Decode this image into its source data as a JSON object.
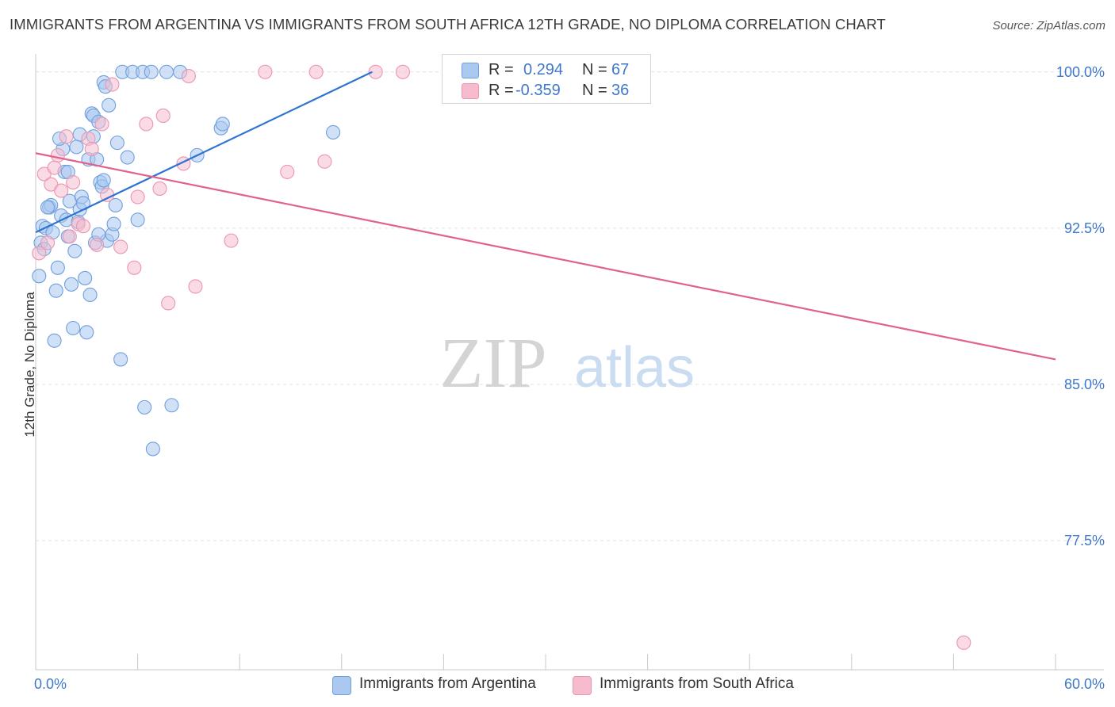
{
  "title": "IMMIGRANTS FROM ARGENTINA VS IMMIGRANTS FROM SOUTH AFRICA 12TH GRADE, NO DIPLOMA CORRELATION CHART",
  "source": "Source: ZipAtlas.com",
  "watermark": {
    "zip": "ZIP",
    "atlas": "atlas"
  },
  "stats": {
    "argentina": {
      "r_label": "R =",
      "r_value": "0.294",
      "n_label": "N =",
      "n_value": "67"
    },
    "south_africa": {
      "r_label": "R =",
      "r_value": "-0.359",
      "n_label": "N =",
      "n_value": "36"
    }
  },
  "legend": {
    "argentina": "Immigrants from Argentina",
    "south_africa": "Immigrants from South Africa"
  },
  "colors": {
    "blue_fill": "#aac8f0",
    "blue_stroke": "#6f9fdc",
    "blue_line": "#2f74d0",
    "pink_fill": "#f6bccd",
    "pink_stroke": "#ea96b1",
    "pink_line": "#e0628d",
    "tick_text": "#3f78c9",
    "grid": "#e2e2e2"
  },
  "chart_data": {
    "type": "scatter",
    "title": "IMMIGRANTS FROM ARGENTINA VS IMMIGRANTS FROM SOUTH AFRICA 12TH GRADE, NO DIPLOMA CORRELATION CHART",
    "xlabel": "",
    "ylabel": "12th Grade, No Diploma",
    "xlim": [
      0,
      60
    ],
    "ylim": [
      71.3,
      100.6
    ],
    "x_tick_labels": [
      "0.0%",
      "60.0%"
    ],
    "y_ticks": [
      100.0,
      92.5,
      85.0,
      77.5
    ],
    "y_tick_labels": [
      "100.0%",
      "92.5%",
      "85.0%",
      "77.5%"
    ],
    "series": [
      {
        "name": "Immigrants from Argentina",
        "color": "blue",
        "points": [
          [
            0.2,
            90.2
          ],
          [
            0.3,
            91.8
          ],
          [
            0.4,
            92.6
          ],
          [
            0.5,
            91.5
          ],
          [
            0.6,
            92.5
          ],
          [
            0.8,
            93.5
          ],
          [
            0.9,
            93.6
          ],
          [
            1.0,
            92.3
          ],
          [
            1.1,
            87.1
          ],
          [
            1.2,
            89.5
          ],
          [
            1.3,
            90.6
          ],
          [
            1.5,
            93.1
          ],
          [
            1.6,
            96.3
          ],
          [
            1.7,
            95.2
          ],
          [
            1.8,
            92.9
          ],
          [
            1.9,
            95.2
          ],
          [
            2.0,
            93.8
          ],
          [
            2.1,
            89.8
          ],
          [
            2.2,
            87.7
          ],
          [
            2.3,
            91.4
          ],
          [
            2.4,
            96.4
          ],
          [
            2.5,
            92.8
          ],
          [
            2.6,
            93.4
          ],
          [
            2.7,
            94.0
          ],
          [
            2.8,
            93.7
          ],
          [
            2.9,
            90.1
          ],
          [
            3.0,
            87.5
          ],
          [
            3.1,
            95.8
          ],
          [
            3.2,
            89.3
          ],
          [
            3.3,
            98.0
          ],
          [
            3.4,
            97.9
          ],
          [
            3.5,
            91.8
          ],
          [
            3.6,
            95.8
          ],
          [
            3.7,
            97.6
          ],
          [
            3.8,
            94.7
          ],
          [
            3.9,
            94.5
          ],
          [
            4.0,
            94.8
          ],
          [
            4.0,
            99.5
          ],
          [
            4.1,
            99.3
          ],
          [
            4.2,
            91.9
          ],
          [
            4.3,
            98.4
          ],
          [
            4.5,
            92.2
          ],
          [
            4.6,
            92.7
          ],
          [
            4.7,
            93.6
          ],
          [
            4.8,
            96.6
          ],
          [
            5.0,
            86.2
          ],
          [
            5.1,
            100.0
          ],
          [
            5.4,
            95.9
          ],
          [
            5.7,
            100.0
          ],
          [
            6.0,
            92.9
          ],
          [
            6.3,
            100.0
          ],
          [
            6.4,
            83.9
          ],
          [
            6.8,
            100.0
          ],
          [
            7.7,
            100.0
          ],
          [
            8.0,
            84.0
          ],
          [
            8.5,
            100.0
          ],
          [
            9.5,
            96.0
          ],
          [
            10.9,
            97.3
          ],
          [
            11.0,
            97.5
          ],
          [
            17.5,
            97.1
          ],
          [
            1.4,
            96.8
          ],
          [
            2.6,
            97.0
          ],
          [
            3.4,
            96.9
          ],
          [
            6.9,
            81.9
          ],
          [
            0.7,
            93.5
          ],
          [
            1.9,
            92.1
          ],
          [
            3.7,
            92.2
          ]
        ]
      },
      {
        "name": "Immigrants from South Africa",
        "color": "pink",
        "points": [
          [
            0.2,
            91.3
          ],
          [
            0.5,
            95.1
          ],
          [
            0.7,
            91.8
          ],
          [
            0.9,
            94.6
          ],
          [
            1.1,
            95.4
          ],
          [
            1.3,
            96.0
          ],
          [
            1.5,
            94.3
          ],
          [
            1.8,
            96.9
          ],
          [
            2.0,
            92.1
          ],
          [
            2.2,
            94.7
          ],
          [
            2.5,
            92.7
          ],
          [
            2.8,
            92.6
          ],
          [
            3.1,
            96.8
          ],
          [
            3.3,
            96.3
          ],
          [
            3.6,
            91.7
          ],
          [
            3.9,
            97.5
          ],
          [
            4.2,
            94.1
          ],
          [
            4.5,
            99.4
          ],
          [
            5.0,
            91.6
          ],
          [
            5.8,
            90.6
          ],
          [
            6.0,
            94.0
          ],
          [
            6.5,
            97.5
          ],
          [
            7.3,
            94.4
          ],
          [
            7.5,
            97.9
          ],
          [
            7.8,
            88.9
          ],
          [
            8.7,
            95.6
          ],
          [
            9.0,
            99.8
          ],
          [
            9.4,
            89.7
          ],
          [
            11.5,
            91.9
          ],
          [
            13.5,
            100.0
          ],
          [
            14.8,
            95.2
          ],
          [
            16.5,
            100.0
          ],
          [
            17.0,
            95.7
          ],
          [
            20.0,
            100.0
          ],
          [
            21.6,
            100.0
          ],
          [
            54.6,
            72.6
          ]
        ]
      }
    ],
    "trendlines": [
      {
        "series": "Immigrants from Argentina",
        "x": [
          0.0,
          19.8
        ],
        "y": [
          92.3,
          100.0
        ]
      },
      {
        "series": "Immigrants from South Africa",
        "x": [
          0.0,
          60.0
        ],
        "y": [
          96.1,
          86.2
        ]
      }
    ]
  }
}
